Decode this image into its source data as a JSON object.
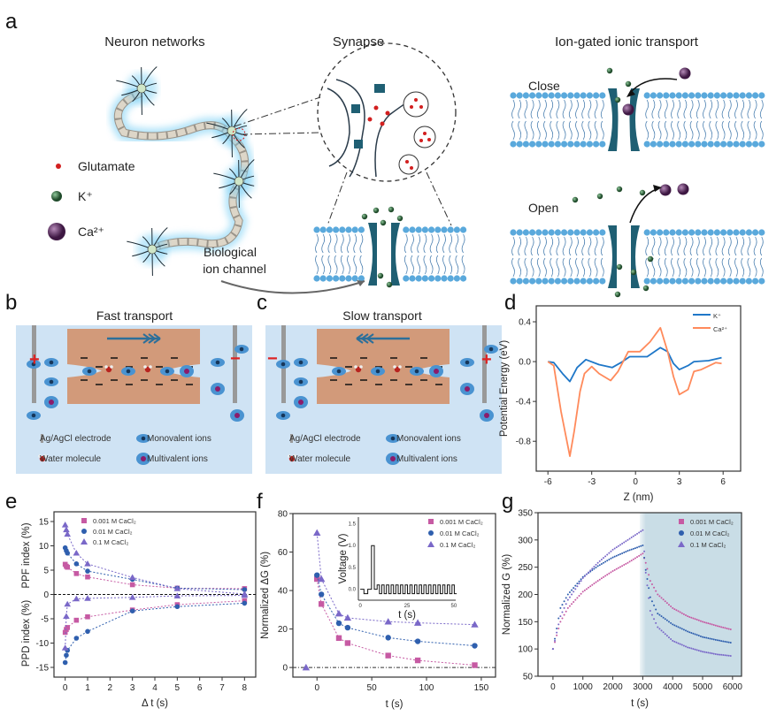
{
  "panel_labels": {
    "a": "a",
    "b": "b",
    "c": "c",
    "d": "d",
    "e": "e",
    "f": "f",
    "g": "g"
  },
  "panel_a": {
    "neuron_title": "Neuron networks",
    "synapse_title": "Synapse",
    "ion_gated_title": "Ion-gated ionic transport",
    "legend": [
      {
        "label": "Glutamate",
        "color": "#d21f1f"
      },
      {
        "label": "K⁺",
        "color": "#2f5d36"
      },
      {
        "label": "Ca²⁺",
        "color": "#5a2a5e"
      }
    ],
    "biological_channel_label_1": "Biological",
    "biological_channel_label_2": "ion channel",
    "close_label": "Close",
    "open_label": "Open"
  },
  "panel_b": {
    "title": "Fast transport",
    "legend": {
      "electrode": "Ag/AgCl electrode",
      "monovalent": "Monovalent ions",
      "water": "Water molecule",
      "multivalent": "Multivalent ions"
    },
    "plus": "+",
    "minus": "−"
  },
  "panel_c": {
    "title": "Slow transport",
    "legend": {
      "electrode": "Ag/AgCl electrode",
      "monovalent": "Monovalent ions",
      "water": "Water molecule",
      "multivalent": "Multivalent ions"
    },
    "plus": "+",
    "minus": "−"
  },
  "colors": {
    "membrane_head": "#5aa9dc",
    "channel": "#1f5f73",
    "box_bg": "#cfe3f4",
    "nanochannel": "#d29a7a",
    "p1": "#c65aa3",
    "p2": "#2f5fae",
    "p3": "#7a68c8",
    "k_line": "#1f77c8",
    "ca_line": "#ff8a5b",
    "shade": "#c9dde6"
  },
  "chart_data": [
    {
      "id": "d",
      "type": "line",
      "xlabel": "Z (nm)",
      "ylabel": "Potential Energy (eV)",
      "xlim": [
        -6.8,
        7.2
      ],
      "ylim": [
        -1.1,
        0.56
      ],
      "xticks": [
        "-6",
        "-3",
        "0",
        "3",
        "6"
      ],
      "xtick_values": [
        -6,
        -3,
        0,
        3,
        6
      ],
      "yticks": [
        "0.4",
        "0.0",
        "-0.4",
        "-0.8"
      ],
      "ytick_values": [
        0.4,
        0,
        -0.4,
        -0.8
      ],
      "legend_position": "top-right",
      "series": [
        {
          "name": "K⁺",
          "x": [
            -6,
            -5.6,
            -5,
            -4.5,
            -4,
            -3.4,
            -2.5,
            -1.6,
            -1,
            -0.4,
            0.8,
            1.7,
            2.2,
            2.6,
            3,
            3.6,
            4,
            5,
            5.9
          ],
          "y": [
            0,
            -0.01,
            -0.12,
            -0.2,
            -0.06,
            0.02,
            -0.03,
            -0.06,
            -0.01,
            0.05,
            0.05,
            0.14,
            0.1,
            -0.02,
            -0.08,
            -0.04,
            0,
            0.01,
            0.04
          ]
        },
        {
          "name": "Ca²⁺",
          "x": [
            -6,
            -5.6,
            -5.1,
            -4.5,
            -4.2,
            -3.8,
            -3.5,
            -3,
            -2.5,
            -1.7,
            -1.2,
            -0.5,
            0.3,
            1,
            1.7,
            2.2,
            2.6,
            3,
            3.6,
            4,
            4.5,
            5.5,
            5.9
          ],
          "y": [
            0,
            -0.04,
            -0.5,
            -0.95,
            -0.7,
            -0.3,
            -0.12,
            -0.05,
            -0.12,
            -0.19,
            -0.1,
            0.1,
            0.1,
            0.2,
            0.34,
            0.1,
            -0.15,
            -0.33,
            -0.28,
            -0.1,
            -0.08,
            -0.01,
            -0.02
          ]
        }
      ]
    },
    {
      "id": "e",
      "type": "scatter",
      "xlabel": "Δ t (s)",
      "ylabel_top": "PPF index (%)",
      "ylabel_bottom": "PPD index (%)",
      "xlim": [
        -0.5,
        8.5
      ],
      "ylim": [
        -17,
        17
      ],
      "xticks": [
        "0",
        "1",
        "2",
        "3",
        "4",
        "5",
        "6",
        "7",
        "8"
      ],
      "yticks": [
        "15",
        "10",
        "5",
        "0",
        "-5",
        "-10",
        "-15"
      ],
      "ytick_values": [
        15,
        10,
        5,
        0,
        -5,
        -10,
        -15
      ],
      "legend_position": "top-left",
      "x": [
        0,
        0.05,
        0.1,
        0.5,
        1,
        3,
        5,
        8
      ],
      "series": [
        {
          "name": "0.001 M CaCl₂",
          "marker": "square",
          "ppf": [
            6.2,
            5.8,
            5.6,
            4.3,
            3.6,
            2.0,
            1.3,
            1.2
          ],
          "ppd": [
            -7.8,
            -7.2,
            -6.8,
            -5.3,
            -4.6,
            -3.2,
            -2.1,
            -1.3
          ]
        },
        {
          "name": "0.01 M CaCl₂",
          "marker": "circle",
          "ppf": [
            9.6,
            9.0,
            8.5,
            6.3,
            4.8,
            3.1,
            1.3,
            1.0
          ],
          "ppd": [
            -14,
            -12.5,
            -11.5,
            -9,
            -7.6,
            -3.4,
            -2.5,
            -1.8
          ]
        },
        {
          "name": "0.1 M CaCl₂",
          "marker": "triangle",
          "ppf": [
            14.3,
            13.3,
            12.4,
            8.5,
            6.3,
            3.5,
            1.2,
            0.1
          ],
          "ppd": [
            -11,
            -4.5,
            -2,
            -0.9,
            -0.8,
            -0.6,
            -0.3,
            -0.2
          ]
        }
      ]
    },
    {
      "id": "f",
      "type": "scatter",
      "xlabel": "t (s)",
      "ylabel": "Normalized ΔG (%)",
      "xlim": [
        -22,
        163
      ],
      "ylim": [
        -5,
        80
      ],
      "xticks": [
        "0",
        "50",
        "100",
        "150"
      ],
      "xtick_values": [
        0,
        50,
        100,
        150
      ],
      "yticks": [
        "0",
        "20",
        "40",
        "60",
        "80"
      ],
      "ytick_values": [
        0,
        20,
        40,
        60,
        80
      ],
      "legend_position": "top-right",
      "series": [
        {
          "name": "0.001 M CaCl₂",
          "marker": "square",
          "x": [
            0,
            4,
            20,
            28,
            65,
            92,
            144
          ],
          "y": [
            46,
            33,
            15.3,
            12.7,
            6.2,
            3.7,
            1.2
          ]
        },
        {
          "name": "0.01 M CaCl₂",
          "marker": "circle",
          "x": [
            0,
            4,
            20,
            28,
            65,
            92,
            144
          ],
          "y": [
            48,
            38,
            23,
            20.7,
            15.5,
            13.6,
            11.3
          ]
        },
        {
          "name": "0.1 M CaCl₂",
          "marker": "triangle",
          "x": [
            -10,
            0,
            4,
            20,
            28,
            65,
            92,
            144
          ],
          "y": [
            0,
            70,
            46,
            28,
            25.8,
            23.8,
            23.2,
            22.3
          ]
        }
      ],
      "inset": {
        "type": "line",
        "xlabel": "t (s)",
        "ylabel": "Voltage (V)",
        "xlim": [
          -1,
          51
        ],
        "ylim": [
          -0.25,
          1.65
        ],
        "xticks": [
          "0",
          "25",
          "50"
        ],
        "xtick_values": [
          0,
          25,
          50
        ],
        "yticks": [
          "0.0",
          "0.5",
          "1.0",
          "1.5"
        ],
        "ytick_values": [
          0,
          0.5,
          1,
          1.5
        ],
        "pulse_high": 1.0,
        "pulse_time": [
          6,
          7.5
        ],
        "train_high": 0.1,
        "train_low": -0.1,
        "train_period": 2.5,
        "train_start": 9,
        "train_end": 50
      }
    },
    {
      "id": "g",
      "type": "scatter",
      "xlabel": "t (s)",
      "ylabel": "Normalized G (%)",
      "xlim": [
        -500,
        6300
      ],
      "ylim": [
        50,
        350
      ],
      "xticks": [
        "0",
        "1000",
        "2000",
        "3000",
        "4000",
        "5000",
        "6000"
      ],
      "xtick_values": [
        0,
        1000,
        2000,
        3000,
        4000,
        5000,
        6000
      ],
      "yticks": [
        "50",
        "100",
        "150",
        "200",
        "250",
        "300",
        "350"
      ],
      "ytick_values": [
        50,
        100,
        150,
        200,
        250,
        300,
        350
      ],
      "shaded_region_x": [
        2900,
        6300
      ],
      "legend_position": "top-right",
      "x": [
        0,
        250,
        500,
        1000,
        1500,
        2000,
        2500,
        3000,
        3100,
        3250,
        3500,
        4000,
        4500,
        5000,
        5500,
        6000
      ],
      "series": [
        {
          "name": "0.001 M CaCl₂",
          "marker": "square",
          "y": [
            100,
            150,
            175,
            205,
            225,
            243,
            258,
            275,
            258,
            225,
            200,
            175,
            160,
            150,
            142,
            135
          ]
        },
        {
          "name": "0.01 M CaCl₂",
          "marker": "circle",
          "y": [
            100,
            175,
            200,
            232,
            252,
            268,
            280,
            290,
            245,
            195,
            165,
            145,
            132,
            122,
            116,
            111
          ]
        },
        {
          "name": "0.1 M CaCl₂",
          "marker": "triangle",
          "y": [
            100,
            160,
            190,
            230,
            258,
            282,
            300,
            318,
            240,
            170,
            140,
            115,
            103,
            95,
            90,
            87
          ]
        }
      ]
    }
  ]
}
